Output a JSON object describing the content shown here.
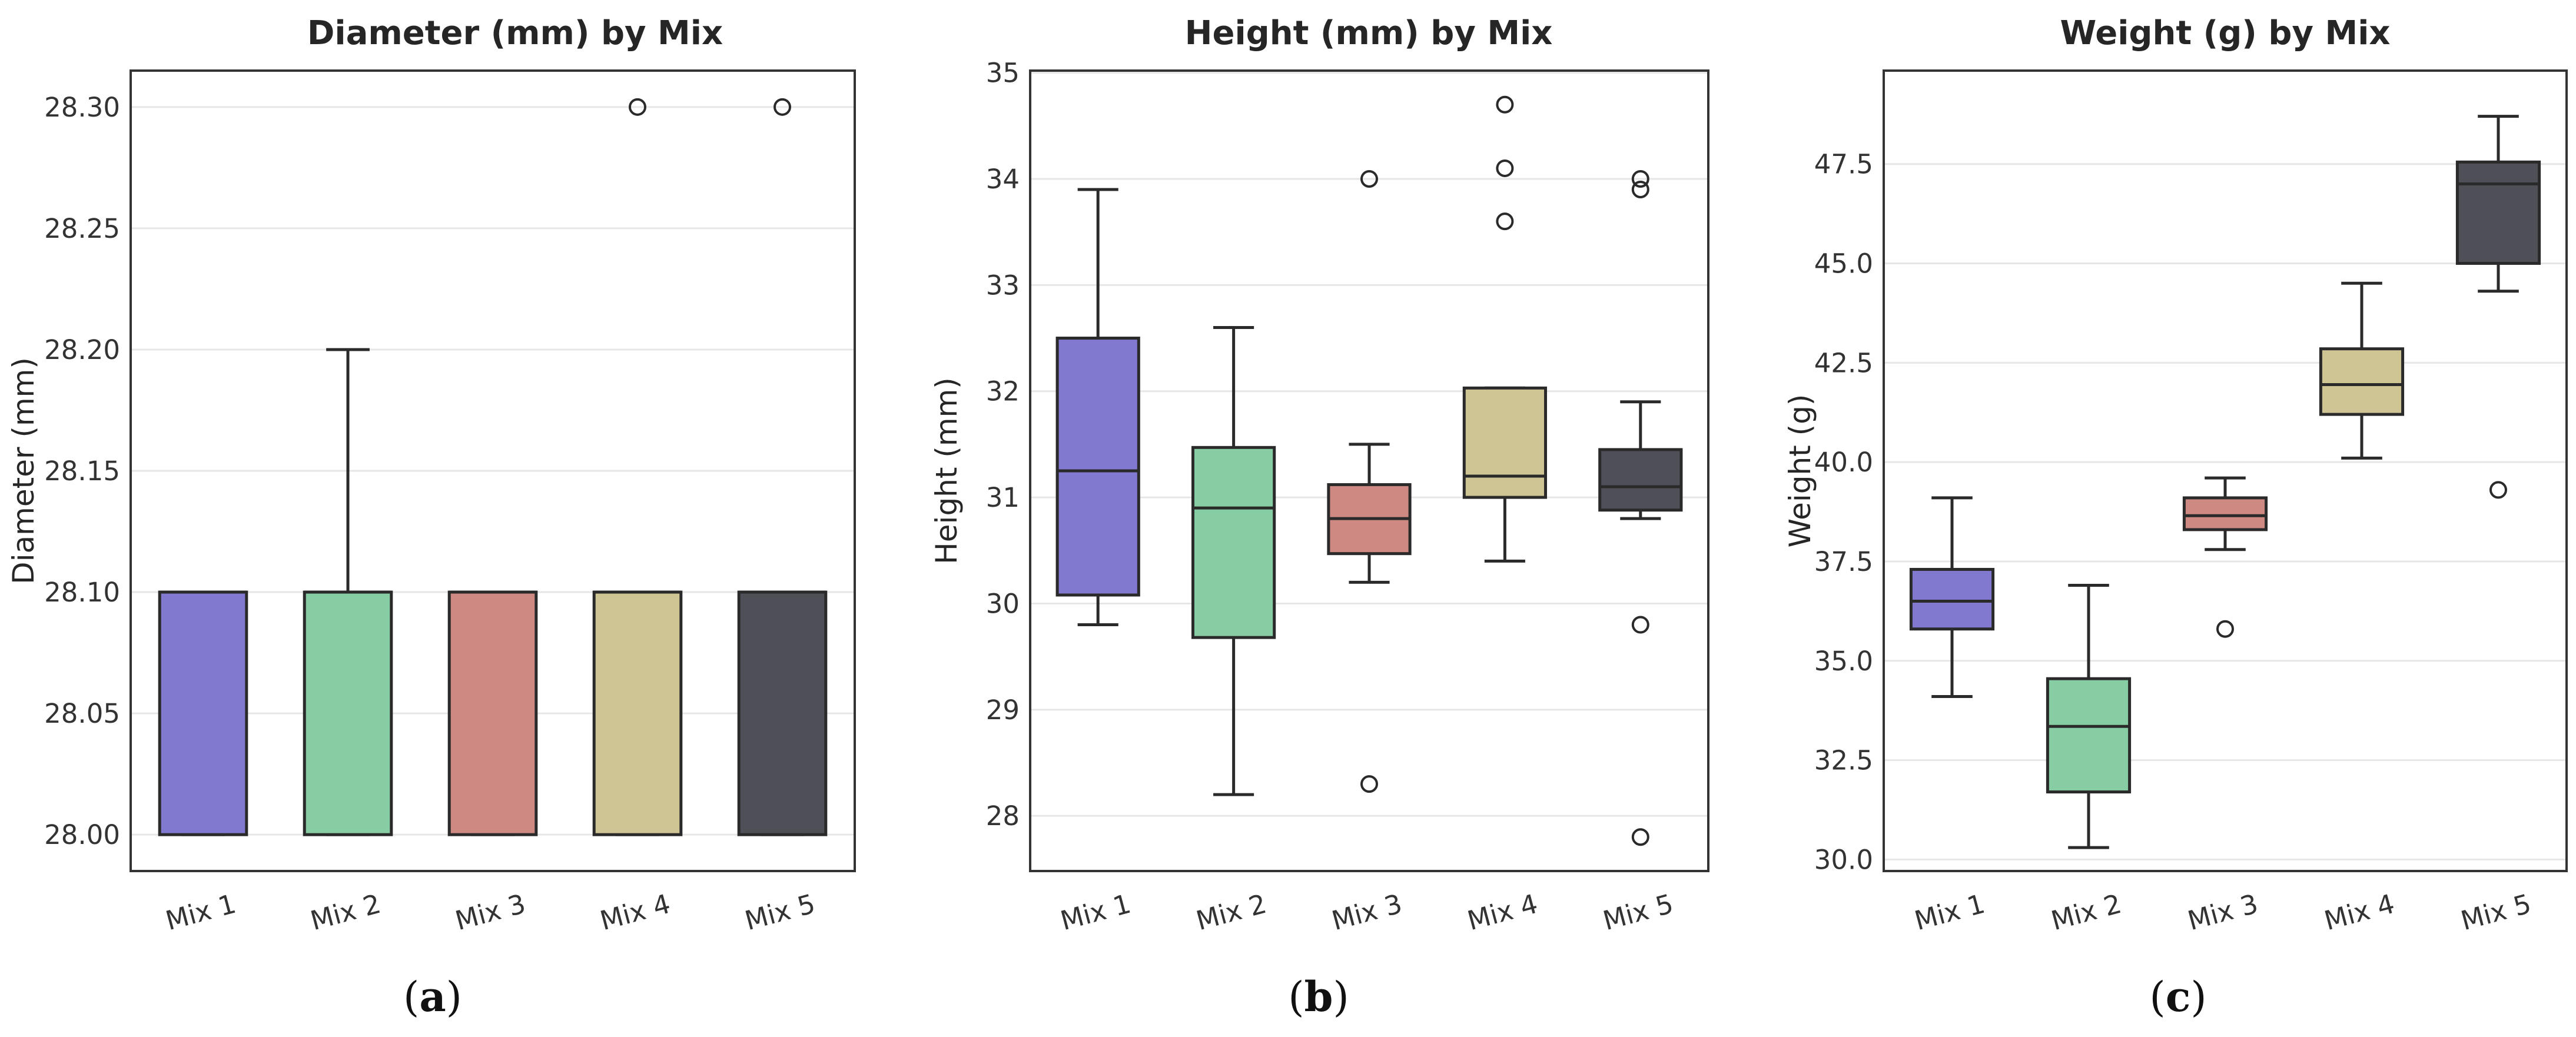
{
  "chart_data": [
    {
      "type": "box",
      "title": "Diameter (mm) by Mix",
      "xlabel": "",
      "ylabel": "Diameter (mm)",
      "ylim": [
        27.985,
        28.315
      ],
      "yticks": [
        28.0,
        28.05,
        28.1,
        28.15,
        28.2,
        28.25,
        28.3
      ],
      "ytick_labels": [
        "28.00",
        "28.05",
        "28.10",
        "28.15",
        "28.20",
        "28.25",
        "28.30"
      ],
      "categories": [
        "Mix 1",
        "Mix 2",
        "Mix 3",
        "Mix 4",
        "Mix 5"
      ],
      "boxes": [
        {
          "name": "Mix 1",
          "whisker_low": 28.0,
          "q1": 28.0,
          "median": 28.1,
          "q3": 28.1,
          "whisker_high": 28.1,
          "outliers": []
        },
        {
          "name": "Mix 2",
          "whisker_low": 28.0,
          "q1": 28.0,
          "median": 28.1,
          "q3": 28.1,
          "whisker_high": 28.2,
          "outliers": []
        },
        {
          "name": "Mix 3",
          "whisker_low": 28.0,
          "q1": 28.0,
          "median": 28.1,
          "q3": 28.1,
          "whisker_high": 28.1,
          "outliers": []
        },
        {
          "name": "Mix 4",
          "whisker_low": 28.0,
          "q1": 28.0,
          "median": 28.1,
          "q3": 28.1,
          "whisker_high": 28.1,
          "outliers": [
            28.3
          ]
        },
        {
          "name": "Mix 5",
          "whisker_low": 28.0,
          "q1": 28.0,
          "median": 28.1,
          "q3": 28.1,
          "whisker_high": 28.1,
          "outliers": [
            28.3
          ]
        }
      ],
      "caption": "a"
    },
    {
      "type": "box",
      "title": "Height (mm) by Mix",
      "xlabel": "",
      "ylabel": "Height (mm)",
      "ylim": [
        27.48,
        35.02
      ],
      "yticks": [
        28,
        29,
        30,
        31,
        32,
        33,
        34,
        35
      ],
      "ytick_labels": [
        "28",
        "29",
        "30",
        "31",
        "32",
        "33",
        "34",
        "35"
      ],
      "categories": [
        "Mix 1",
        "Mix 2",
        "Mix 3",
        "Mix 4",
        "Mix 5"
      ],
      "boxes": [
        {
          "name": "Mix 1",
          "whisker_low": 29.8,
          "q1": 30.08,
          "median": 31.25,
          "q3": 32.5,
          "whisker_high": 33.9,
          "outliers": []
        },
        {
          "name": "Mix 2",
          "whisker_low": 28.2,
          "q1": 29.68,
          "median": 30.9,
          "q3": 31.47,
          "whisker_high": 32.6,
          "outliers": []
        },
        {
          "name": "Mix 3",
          "whisker_low": 30.2,
          "q1": 30.47,
          "median": 30.8,
          "q3": 31.12,
          "whisker_high": 31.5,
          "outliers": [
            34.0,
            28.3
          ]
        },
        {
          "name": "Mix 4",
          "whisker_low": 30.4,
          "q1": 31.0,
          "median": 31.2,
          "q3": 32.03,
          "whisker_high": 32.03,
          "outliers": [
            34.7,
            34.1,
            33.6
          ]
        },
        {
          "name": "Mix 5",
          "whisker_low": 30.8,
          "q1": 30.88,
          "median": 31.1,
          "q3": 31.45,
          "whisker_high": 31.9,
          "outliers": [
            34.0,
            33.9,
            29.8,
            27.8
          ]
        }
      ],
      "caption": "b"
    },
    {
      "type": "box",
      "title": "Weight (g) by Mix",
      "xlabel": "",
      "ylabel": "Weight (g)",
      "ylim": [
        29.71,
        49.85
      ],
      "yticks": [
        30.0,
        32.5,
        35.0,
        37.5,
        40.0,
        42.5,
        45.0,
        47.5
      ],
      "ytick_labels": [
        "30.0",
        "32.5",
        "35.0",
        "37.5",
        "40.0",
        "42.5",
        "45.0",
        "47.5"
      ],
      "categories": [
        "Mix 1",
        "Mix 2",
        "Mix 3",
        "Mix 4",
        "Mix 5"
      ],
      "boxes": [
        {
          "name": "Mix 1",
          "whisker_low": 34.1,
          "q1": 35.8,
          "median": 36.5,
          "q3": 37.3,
          "whisker_high": 39.1,
          "outliers": []
        },
        {
          "name": "Mix 2",
          "whisker_low": 30.3,
          "q1": 31.7,
          "median": 33.35,
          "q3": 34.55,
          "whisker_high": 36.9,
          "outliers": []
        },
        {
          "name": "Mix 3",
          "whisker_low": 37.8,
          "q1": 38.3,
          "median": 38.65,
          "q3": 39.1,
          "whisker_high": 39.6,
          "outliers": [
            35.8
          ]
        },
        {
          "name": "Mix 4",
          "whisker_low": 40.1,
          "q1": 41.2,
          "median": 41.95,
          "q3": 42.85,
          "whisker_high": 44.5,
          "outliers": []
        },
        {
          "name": "Mix 5",
          "whisker_low": 44.3,
          "q1": 45.0,
          "median": 47.0,
          "q3": 47.55,
          "whisker_high": 48.7,
          "outliers": [
            39.3
          ]
        }
      ],
      "caption": "c"
    }
  ],
  "colors": {
    "Mix 1": "#8179cf",
    "Mix 2": "#87cda4",
    "Mix 3": "#ce8a82",
    "Mix 4": "#cfc594",
    "Mix 5": "#4f4f58",
    "edge": "#2a2a2a",
    "grid": "#e6e6e6",
    "axes": "#333333"
  }
}
